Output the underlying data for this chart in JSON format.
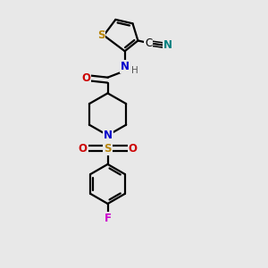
{
  "background_color": "#e8e8e8",
  "bond_color": "#000000",
  "atom_colors": {
    "S": "#b8860b",
    "N_blue": "#0000cc",
    "O": "#cc0000",
    "F": "#cc00cc",
    "CN_N": "#008080",
    "H": "#555555"
  },
  "figsize": [
    3.0,
    3.0
  ],
  "dpi": 100,
  "xlim": [
    0,
    10
  ],
  "ylim": [
    0,
    10
  ]
}
